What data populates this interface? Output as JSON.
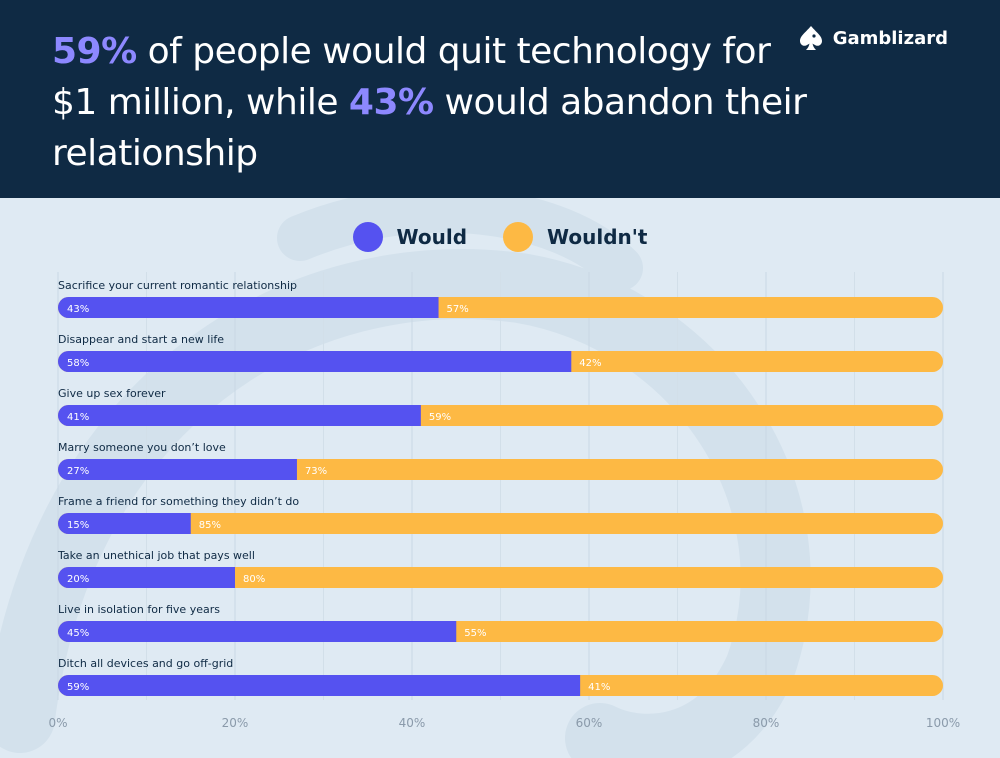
{
  "header": {
    "title_parts": [
      {
        "text": "59%",
        "highlight": true
      },
      {
        "text": " of people would quit technology for $1 million, while ",
        "highlight": false
      },
      {
        "text": "43%",
        "highlight": true
      },
      {
        "text": " would abandon their relationship",
        "highlight": false
      }
    ],
    "brand": "Gamblizard",
    "brand_icon": "spade-lizard-icon"
  },
  "colors": {
    "header_bg": "#0f2a44",
    "highlight": "#8d88ff",
    "would": "#5552f0",
    "wouldnt": "#fdb944",
    "background": "#dfeaf3"
  },
  "legend": [
    {
      "label": "Would",
      "color": "#5552f0"
    },
    {
      "label": "Wouldn't",
      "color": "#fdb944"
    }
  ],
  "chart_data": {
    "type": "bar",
    "orientation": "horizontal",
    "stacked": true,
    "categories": [
      "Sacrifice your current romantic relationship",
      "Disappear and start a new life",
      "Give up sex forever",
      "Marry someone you don’t love",
      "Frame a friend for something they didn’t do",
      "Take an unethical job that pays well",
      "Live in isolation for five years",
      "Ditch all devices and go off-grid"
    ],
    "series": [
      {
        "name": "Would",
        "values": [
          43,
          58,
          41,
          27,
          15,
          20,
          45,
          59
        ]
      },
      {
        "name": "Wouldn't",
        "values": [
          57,
          42,
          59,
          73,
          85,
          80,
          55,
          41
        ]
      }
    ],
    "xlim": [
      0,
      100
    ],
    "xticks": [
      "0%",
      "20%",
      "40%",
      "60%",
      "80%",
      "100%"
    ],
    "grid": true,
    "legend_position": "top-center"
  }
}
